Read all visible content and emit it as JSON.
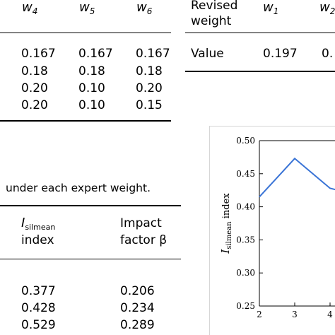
{
  "table_weights": {
    "headers": [
      {
        "base": "w",
        "sub": "4"
      },
      {
        "base": "w",
        "sub": "5"
      },
      {
        "base": "w",
        "sub": "6"
      }
    ],
    "rows": [
      [
        "0.167",
        "0.167",
        "0.167"
      ],
      [
        "0.18",
        "0.18",
        "0.18"
      ],
      [
        "0.20",
        "0.10",
        "0.20"
      ],
      [
        "0.20",
        "0.10",
        "0.15"
      ]
    ]
  },
  "table_revised": {
    "header_label_line1": "Revised",
    "header_label_line2": "weight",
    "headers": [
      {
        "base": "w",
        "sub": "1"
      },
      {
        "base": "w",
        "sub": "2"
      }
    ],
    "row_label": "Value",
    "row_values": [
      "0.197",
      "0."
    ]
  },
  "caption_fragment": "under each expert weight.",
  "table_index": {
    "col1_base": "I",
    "col1_sub": "silmean",
    "col1_line2": "index",
    "col2_line1": "Impact",
    "col2_line2": "factor β",
    "rows": [
      [
        "0.377",
        "0.206"
      ],
      [
        "0.428",
        "0.234"
      ],
      [
        "0.529",
        "0.289"
      ]
    ]
  },
  "chart_data": {
    "type": "line",
    "ylabel_base": "I",
    "ylabel_sub": "silmean",
    "ylabel_rest": "index",
    "xlabel": "",
    "ylim": [
      0.25,
      0.5
    ],
    "yticks": [
      "0.50",
      "0.45",
      "0.40",
      "0.35",
      "0.30",
      "0.25"
    ],
    "xticks": [
      "2",
      "3",
      "4"
    ],
    "series": [
      {
        "x": [
          2,
          3,
          4,
          4.15
        ],
        "values": [
          0.415,
          0.473,
          0.428,
          0.426
        ]
      }
    ],
    "line_color": "#3a74d6"
  }
}
